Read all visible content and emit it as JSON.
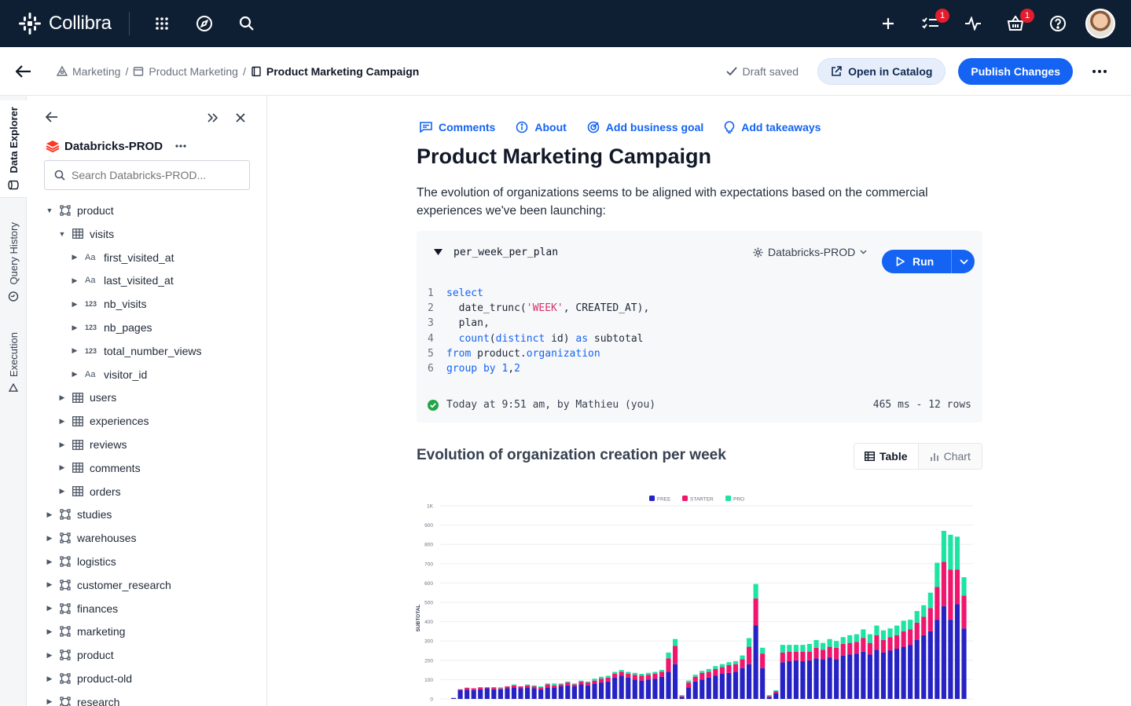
{
  "app": {
    "name": "Collibra"
  },
  "topbar": {
    "checklist_badge": "1",
    "basket_badge": "1"
  },
  "breadcrumb": {
    "items": [
      "Marketing",
      "Product Marketing"
    ],
    "separator": "/",
    "current": "Product Marketing Campaign"
  },
  "header": {
    "draft_status": "Draft saved",
    "open_catalog_label": "Open in Catalog",
    "publish_label": "Publish Changes"
  },
  "rail": {
    "tabs": [
      "Data Explorer",
      "Query History",
      "Execution"
    ]
  },
  "explorer": {
    "source": "Databricks-PROD",
    "search_placeholder": "Search Databricks-PROD...",
    "tree": [
      {
        "label": "product",
        "kind": "schema",
        "depth": 0,
        "expanded": true
      },
      {
        "label": "visits",
        "kind": "table",
        "depth": 1,
        "expanded": true
      },
      {
        "label": "first_visited_at",
        "kind": "text",
        "depth": 2
      },
      {
        "label": "last_visited_at",
        "kind": "text",
        "depth": 2
      },
      {
        "label": "nb_visits",
        "kind": "number",
        "depth": 2
      },
      {
        "label": "nb_pages",
        "kind": "number",
        "depth": 2
      },
      {
        "label": "total_number_views",
        "kind": "number",
        "depth": 2
      },
      {
        "label": "visitor_id",
        "kind": "text",
        "depth": 2
      },
      {
        "label": "users",
        "kind": "table",
        "depth": 1
      },
      {
        "label": "experiences",
        "kind": "table",
        "depth": 1
      },
      {
        "label": "reviews",
        "kind": "table",
        "depth": 1
      },
      {
        "label": "comments",
        "kind": "table",
        "depth": 1
      },
      {
        "label": "orders",
        "kind": "table",
        "depth": 1
      },
      {
        "label": "studies",
        "kind": "schema",
        "depth": 0
      },
      {
        "label": "warehouses",
        "kind": "schema",
        "depth": 0
      },
      {
        "label": "logistics",
        "kind": "schema",
        "depth": 0
      },
      {
        "label": "customer_research",
        "kind": "schema",
        "depth": 0
      },
      {
        "label": "finances",
        "kind": "schema",
        "depth": 0
      },
      {
        "label": "marketing",
        "kind": "schema",
        "depth": 0
      },
      {
        "label": "product",
        "kind": "schema",
        "depth": 0
      },
      {
        "label": "product-old",
        "kind": "schema",
        "depth": 0
      },
      {
        "label": "research",
        "kind": "schema",
        "depth": 0
      }
    ]
  },
  "page": {
    "actions": [
      "Comments",
      "About",
      "Add business goal",
      "Add takeaways"
    ],
    "title": "Product Marketing Campaign",
    "description": "The evolution of organizations seems to be aligned with expectations based on the commercial experiences we've been launching:"
  },
  "query": {
    "name": "per_week_per_plan",
    "datasource": "Databricks-PROD",
    "run_label": "Run",
    "line_numbers": [
      "1",
      "2",
      "3",
      "4",
      "5",
      "6"
    ],
    "run_info": "Today at 9:51 am, by Mathieu (you)",
    "stats": "465 ms - 12 rows"
  },
  "result": {
    "title": "Evolution of organization creation per week",
    "tabs": [
      "Table",
      "Chart"
    ]
  },
  "chart_data": {
    "type": "bar",
    "stacked": true,
    "ylabel": "SUBTOTAL",
    "ylim": [
      0,
      1000
    ],
    "yticks": [
      "0",
      "100",
      "200",
      "300",
      "400",
      "500",
      "600",
      "700",
      "800",
      "900",
      "1K"
    ],
    "legend_position": "top",
    "colors": {
      "FREE": "#2622c4",
      "STARTER": "#f0166e",
      "PRO": "#1de3a3"
    },
    "series": [
      {
        "name": "FREE",
        "values": [
          5,
          45,
          48,
          45,
          50,
          55,
          50,
          50,
          55,
          60,
          55,
          60,
          55,
          50,
          60,
          60,
          65,
          70,
          65,
          75,
          70,
          80,
          85,
          90,
          110,
          120,
          110,
          100,
          95,
          100,
          105,
          115,
          140,
          180,
          10,
          60,
          90,
          100,
          110,
          120,
          130,
          135,
          140,
          160,
          180,
          380,
          160,
          10,
          30,
          190,
          195,
          200,
          195,
          200,
          210,
          205,
          215,
          205,
          225,
          230,
          235,
          245,
          230,
          255,
          240,
          250,
          260,
          270,
          280,
          305,
          330,
          350,
          410,
          480,
          410,
          490,
          365
        ]
      },
      {
        "name": "STARTER",
        "values": [
          0,
          5,
          10,
          10,
          10,
          5,
          10,
          5,
          10,
          10,
          10,
          10,
          10,
          10,
          15,
          10,
          10,
          15,
          10,
          15,
          15,
          15,
          20,
          20,
          20,
          20,
          20,
          25,
          25,
          25,
          25,
          25,
          70,
          95,
          5,
          25,
          25,
          35,
          30,
          35,
          35,
          40,
          40,
          45,
          90,
          140,
          75,
          5,
          10,
          50,
          50,
          45,
          50,
          45,
          55,
          50,
          55,
          60,
          60,
          60,
          60,
          70,
          60,
          75,
          65,
          70,
          70,
          80,
          80,
          90,
          95,
          120,
          170,
          230,
          260,
          180,
          170
        ]
      },
      {
        "name": "PRO",
        "values": [
          0,
          0,
          0,
          0,
          0,
          0,
          0,
          5,
          0,
          5,
          0,
          5,
          5,
          5,
          5,
          10,
          5,
          5,
          5,
          5,
          5,
          10,
          10,
          10,
          10,
          10,
          10,
          10,
          10,
          10,
          10,
          10,
          30,
          35,
          5,
          10,
          10,
          10,
          15,
          15,
          15,
          15,
          15,
          20,
          45,
          75,
          30,
          5,
          5,
          40,
          35,
          35,
          35,
          40,
          40,
          35,
          40,
          35,
          35,
          40,
          40,
          45,
          45,
          50,
          50,
          45,
          50,
          55,
          50,
          60,
          60,
          80,
          125,
          160,
          180,
          170,
          95
        ]
      }
    ],
    "tick_font_color": "#6b7280"
  }
}
